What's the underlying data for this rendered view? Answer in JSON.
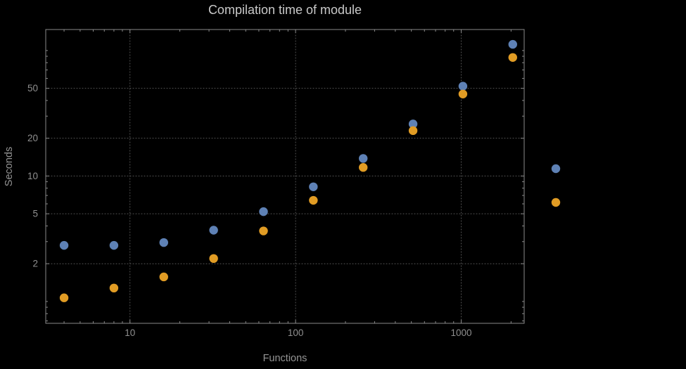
{
  "title": "Compilation time of module",
  "colors": {
    "background": "#000000",
    "frame": "#8a8a8a",
    "grid": "#575757",
    "title_text": "#c9c9c9",
    "tick_text": "#8f8f8f",
    "axis_label_text": "#949494",
    "series_blue": "#5e81b5",
    "series_orange": "#e19c24"
  },
  "chart_data": {
    "type": "scatter",
    "title": "Compilation time of module",
    "xlabel": "Functions",
    "ylabel": "Seconds",
    "xscale": "log",
    "yscale": "log",
    "xlim": [
      3.1,
      2400
    ],
    "ylim": [
      0.67,
      147
    ],
    "xticks": [
      10,
      100,
      1000
    ],
    "yticks": [
      2,
      5,
      10,
      20,
      50
    ],
    "grid": true,
    "x": [
      4,
      8,
      16,
      32,
      64,
      128,
      256,
      512,
      1024,
      2048
    ],
    "series": [
      {
        "name": "series-1-blue",
        "color": "#5e81b5",
        "values": [
          2.8,
          2.8,
          2.95,
          3.7,
          5.2,
          8.2,
          13.8,
          26,
          52,
          112
        ]
      },
      {
        "name": "series-2-orange",
        "color": "#e19c24",
        "values": [
          1.07,
          1.28,
          1.57,
          2.2,
          3.65,
          6.4,
          11.7,
          23,
          45,
          88
        ]
      }
    ],
    "legend": {
      "position": "right-outside",
      "labels_visible": false,
      "marker_colors": [
        "#5e81b5",
        "#e19c24"
      ]
    }
  }
}
